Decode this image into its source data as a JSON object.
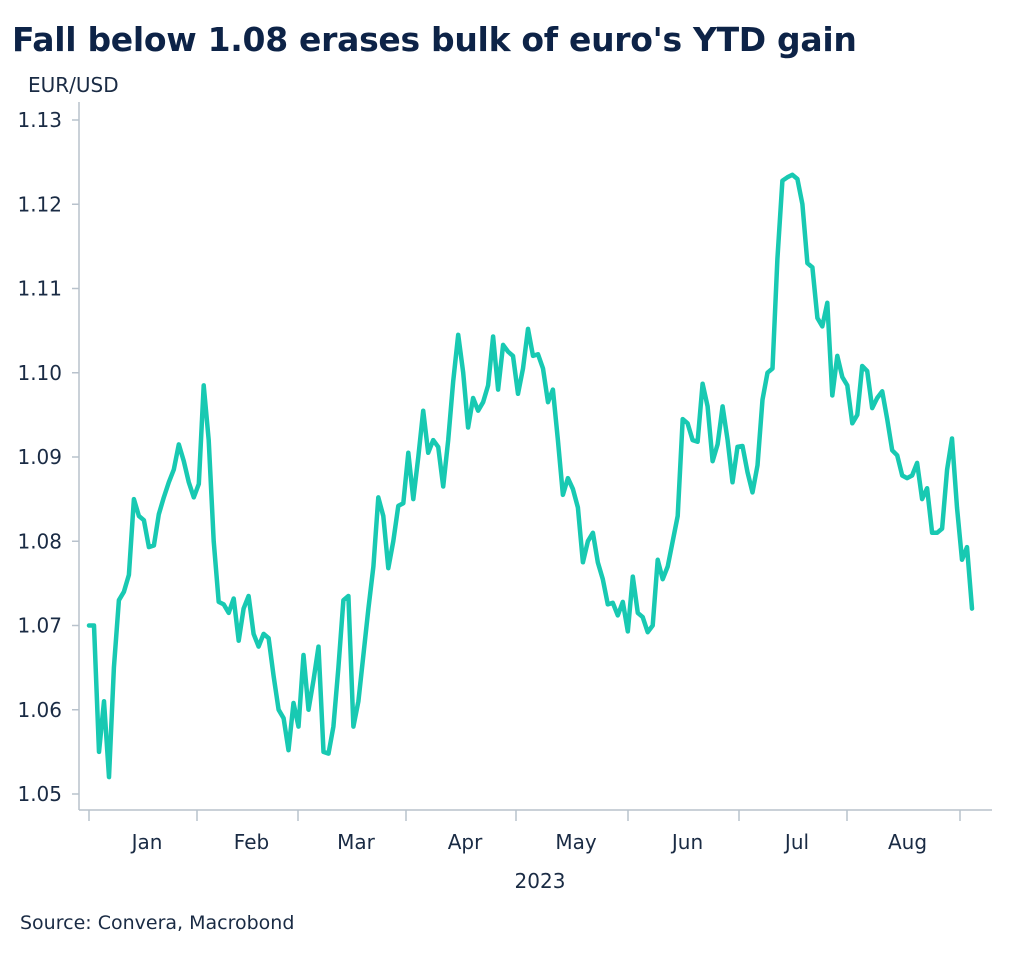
{
  "title": "Fall below 1.08 erases bulk of euro's YTD gain",
  "source": "Source: Convera, Macrobond",
  "colors": {
    "line": "#18c9b2",
    "axis": "#b8c2cc",
    "text": "#1a2b44",
    "title": "#0d2347"
  },
  "chart_data": {
    "type": "line",
    "ylabel": "EUR/USD",
    "xlabel": "2023",
    "ylim": [
      1.05,
      1.13
    ],
    "yticks": [
      "1.05",
      "1.06",
      "1.07",
      "1.08",
      "1.09",
      "1.10",
      "1.11",
      "1.12",
      "1.13"
    ],
    "month_labels": [
      "Jan",
      "Feb",
      "Mar",
      "Apr",
      "May",
      "Jun",
      "Jul",
      "Aug"
    ],
    "grid": false,
    "series": [
      {
        "values": [
          1.07,
          1.07,
          1.055,
          1.061,
          1.052,
          1.065,
          1.073,
          1.074,
          1.076,
          1.085,
          1.083,
          1.0825,
          1.0793,
          1.0795,
          1.0832,
          1.0852,
          1.087,
          1.0885,
          1.0915,
          1.0895,
          1.087,
          1.0852,
          1.0868,
          1.0985,
          1.092,
          1.08,
          1.0728,
          1.0725,
          1.0715,
          1.0732,
          1.0682,
          1.072,
          1.0735,
          1.069,
          1.0675,
          1.069,
          1.0685,
          1.064,
          1.06,
          1.059,
          1.0552,
          1.0608,
          1.058,
          1.0665,
          1.06,
          1.0635,
          1.0675,
          1.055,
          1.0548,
          1.058,
          1.065,
          1.073,
          1.0735,
          1.058,
          1.061,
          1.0665,
          1.072,
          1.077,
          1.0852,
          1.083,
          1.0768,
          1.08,
          1.0842,
          1.0845,
          1.0905,
          1.085,
          1.09,
          1.0955,
          1.0905,
          1.092,
          1.0912,
          1.0865,
          1.092,
          1.099,
          1.1045,
          1.1,
          1.0935,
          1.097,
          1.0955,
          1.0965,
          1.0985,
          1.1043,
          1.098,
          1.1033,
          1.1025,
          1.102,
          1.0975,
          1.1005,
          1.1052,
          1.102,
          1.1022,
          1.1005,
          1.0965,
          1.098,
          1.092,
          1.0855,
          1.0875,
          1.0862,
          1.084,
          1.0775,
          1.08,
          1.081,
          1.0775,
          1.0755,
          1.0725,
          1.0727,
          1.0712,
          1.0728,
          1.0693,
          1.0758,
          1.0715,
          1.071,
          1.0692,
          1.07,
          1.0778,
          1.0755,
          1.077,
          1.08,
          1.083,
          1.0945,
          1.094,
          1.092,
          1.0918,
          1.0987,
          1.096,
          1.0895,
          1.0915,
          1.096,
          1.092,
          1.087,
          1.0912,
          1.0913,
          1.0882,
          1.0858,
          1.089,
          1.0968,
          1.1,
          1.1005,
          1.1135,
          1.1228,
          1.1232,
          1.1235,
          1.123,
          1.12,
          1.113,
          1.1125,
          1.1065,
          1.1055,
          1.1083,
          1.0973,
          1.102,
          1.0995,
          1.0985,
          1.094,
          1.095,
          1.1008,
          1.1002,
          1.0958,
          1.097,
          1.0978,
          1.0945,
          1.0908,
          1.0902,
          1.0878,
          1.0875,
          1.0878,
          1.0893,
          1.085,
          1.0863,
          1.081,
          1.081,
          1.0815,
          1.0885,
          1.0922,
          1.084,
          1.0778,
          1.0793,
          1.072
        ]
      }
    ]
  }
}
